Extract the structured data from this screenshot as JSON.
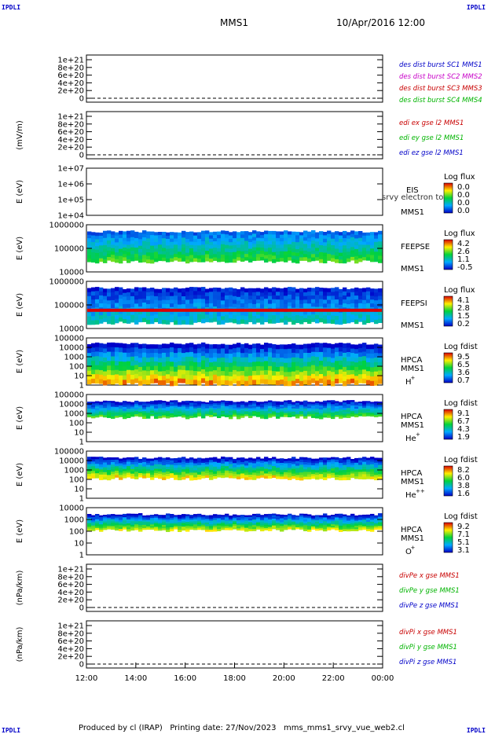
{
  "header": {
    "corner_label": "IPDLI",
    "mission": "MMS1",
    "datetime": "10/Apr/2016 12:00"
  },
  "footer": {
    "text": "Produced by cl (IRAP)   Printing date: 27/Nov/2023   mms_mms1_srvy_vue_web2.cl"
  },
  "chart_data": {
    "type": "multi-panel time series / spectrogram",
    "x_ticks": [
      "12:00",
      "14:00",
      "16:00",
      "18:00",
      "20:00",
      "22:00",
      "00:00"
    ],
    "panels": [
      {
        "id": "p1",
        "kind": "line",
        "ylabel": "",
        "yticks": [
          "1e+21",
          "8e+20",
          "6e+20",
          "4e+20",
          "2e+20",
          "0"
        ],
        "legend": [
          {
            "text": "des dist burst SC1 MMS1",
            "color": "#0000c8"
          },
          {
            "text": "des dist burst SC2 MMS2",
            "color": "#c800c8"
          },
          {
            "text": "des dist burst SC3 MMS3",
            "color": "#c80000"
          },
          {
            "text": "des dist burst SC4 MMS4",
            "color": "#00b400"
          }
        ]
      },
      {
        "id": "p2",
        "kind": "line",
        "ylabel": "(mV/m)",
        "yticks": [
          "1e+21",
          "8e+20",
          "6e+20",
          "4e+20",
          "2e+20",
          "0"
        ],
        "legend": [
          {
            "text": "edi ex gse l2 MMS1",
            "color": "#c80000"
          },
          {
            "text": "edi ey gse l2 MMS1",
            "color": "#00b400"
          },
          {
            "text": "edi ez gse l2 MMS1",
            "color": "#0000c8"
          }
        ]
      },
      {
        "id": "p3",
        "kind": "spec",
        "ylabel": "E (eV)",
        "yticks": [
          "1e+07",
          "1e+06",
          "1e+05",
          "1e+04"
        ],
        "labels": [
          "EIS",
          "MMS1"
        ],
        "overlay": "srvy electron tof",
        "cbar_title": "Log flux",
        "cbar_ticks": [
          "0.0",
          "0.0",
          "0.0",
          "0.0"
        ]
      },
      {
        "id": "p4",
        "kind": "spec",
        "ylabel": "E (eV)",
        "yticks": [
          "1000000",
          "100000",
          "10000"
        ],
        "labels": [
          "FEEPSE",
          "MMS1"
        ],
        "cbar_title": "Log flux",
        "cbar_ticks": [
          "4.2",
          "2.6",
          "1.1",
          "-0.5"
        ]
      },
      {
        "id": "p5",
        "kind": "spec",
        "ylabel": "E (eV)",
        "yticks": [
          "1000000",
          "100000",
          "10000"
        ],
        "labels": [
          "FEEPSI",
          "MMS1"
        ],
        "cbar_title": "Log flux",
        "cbar_ticks": [
          "4.1",
          "2.8",
          "1.5",
          "0.2"
        ]
      },
      {
        "id": "p6",
        "kind": "spec",
        "ylabel": "E (eV)",
        "yticks": [
          "100000",
          "10000",
          "1000",
          "100",
          "10",
          "1"
        ],
        "labels": [
          "HPCA",
          "MMS1"
        ],
        "species": "H",
        "species_sup": "+",
        "cbar_title": "Log fdist",
        "cbar_ticks": [
          "9.5",
          "6.5",
          "3.6",
          "0.7"
        ]
      },
      {
        "id": "p7",
        "kind": "spec",
        "ylabel": "E (eV)",
        "yticks": [
          "100000",
          "10000",
          "1000",
          "100",
          "10",
          "1"
        ],
        "labels": [
          "HPCA",
          "MMS1"
        ],
        "species": "He",
        "species_sup": "+",
        "cbar_title": "Log fdist",
        "cbar_ticks": [
          "9.1",
          "6.7",
          "4.3",
          "1.9"
        ]
      },
      {
        "id": "p8",
        "kind": "spec",
        "ylabel": "E (eV)",
        "yticks": [
          "100000",
          "10000",
          "1000",
          "100",
          "10",
          "1"
        ],
        "labels": [
          "HPCA",
          "MMS1"
        ],
        "species": "He",
        "species_sup": "++",
        "cbar_title": "Log fdist",
        "cbar_ticks": [
          "8.2",
          "6.0",
          "3.8",
          "1.6"
        ]
      },
      {
        "id": "p9",
        "kind": "spec",
        "ylabel": "E (eV)",
        "yticks": [
          "10000",
          "1000",
          "100",
          "10",
          "1"
        ],
        "labels": [
          "HPCA",
          "MMS1"
        ],
        "species": "O",
        "species_sup": "+",
        "cbar_title": "Log fdist",
        "cbar_ticks": [
          "9.2",
          "7.1",
          "5.1",
          "3.1"
        ]
      },
      {
        "id": "p10",
        "kind": "line",
        "ylabel": "(nPa/km)",
        "yticks": [
          "1e+21",
          "8e+20",
          "6e+20",
          "4e+20",
          "2e+20",
          "0"
        ],
        "legend": [
          {
            "text": "divPe x gse MMS1",
            "color": "#c80000"
          },
          {
            "text": "divPe y gse MMS1",
            "color": "#00b400"
          },
          {
            "text": "divPe z gse MMS1",
            "color": "#0000c8"
          }
        ]
      },
      {
        "id": "p11",
        "kind": "line",
        "ylabel": "(nPa/km)",
        "yticks": [
          "1e+21",
          "8e+20",
          "6e+20",
          "4e+20",
          "2e+20",
          "0"
        ],
        "legend": [
          {
            "text": "divPi x gse MMS1",
            "color": "#c80000"
          },
          {
            "text": "divPi y gse MMS1",
            "color": "#00b400"
          },
          {
            "text": "divPi z gse MMS1",
            "color": "#0000c8"
          }
        ]
      }
    ]
  }
}
